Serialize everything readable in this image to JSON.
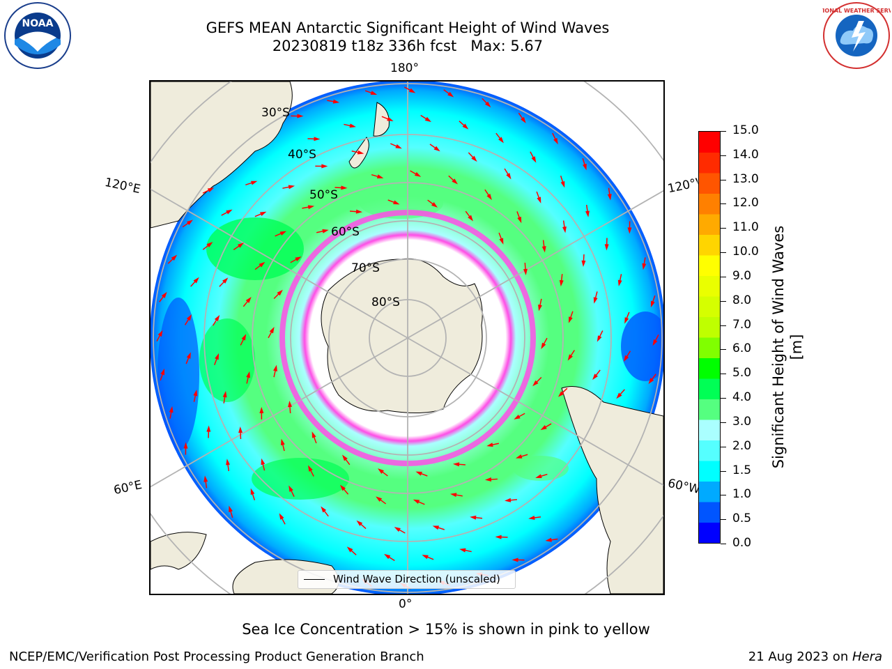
{
  "header": {
    "title_line1": "GEFS MEAN Antarctic Significant Height of Wind Waves",
    "title_line2": "20230819 t18z 336h fcst   Max: 5.67"
  },
  "logos": {
    "left": {
      "name": "NOAA",
      "ring_text": "NATIONAL OCEANIC AND ATMOSPHERIC ADMINISTRATION · U.S. DEPARTMENT OF COMMERCE"
    },
    "right": {
      "name": "NATIONAL WEATHER SERVICE"
    }
  },
  "map": {
    "longitude_labels": {
      "top": "180°",
      "bottom": "0°",
      "upper_left": "120°E",
      "upper_right": "120°W",
      "lower_left": "60°E",
      "lower_right": "60°W"
    },
    "latitude_labels": [
      "30°S",
      "40°S",
      "50°S",
      "60°S",
      "70°S",
      "80°S"
    ],
    "legend_label": "Wind Wave Direction (unscaled)",
    "colors": {
      "land": "#efecdc",
      "sea_ice": "#ff4de6",
      "arrow": "#ff0000",
      "grid": "#b3b3b3"
    }
  },
  "colorbar": {
    "title": "Significant Height of Wind Waves [m]",
    "ticks": [
      "15.0",
      "14.0",
      "13.0",
      "12.0",
      "11.0",
      "10.0",
      "9.0",
      "8.0",
      "7.0",
      "6.0",
      "5.0",
      "4.0",
      "3.0",
      "2.0",
      "1.5",
      "1.0",
      "0.5",
      "0.0"
    ],
    "colors": [
      "#ff0000",
      "#ff2b00",
      "#ff5500",
      "#ff8000",
      "#ffaa00",
      "#ffd500",
      "#ffff00",
      "#eaff00",
      "#d5ff00",
      "#bfff00",
      "#80ff00",
      "#00ff00",
      "#00ff55",
      "#55ff80",
      "#aaffff",
      "#55ffff",
      "#00ffff",
      "#00aaff",
      "#0055ff",
      "#0000ff"
    ]
  },
  "footer": {
    "caption": "Sea Ice Concentration > 15% is shown in pink to yellow",
    "producer": "NCEP/EMC/Verification Post Processing Product Generation Branch",
    "date_text": "21 Aug 2023 on ",
    "system": "Hera"
  }
}
